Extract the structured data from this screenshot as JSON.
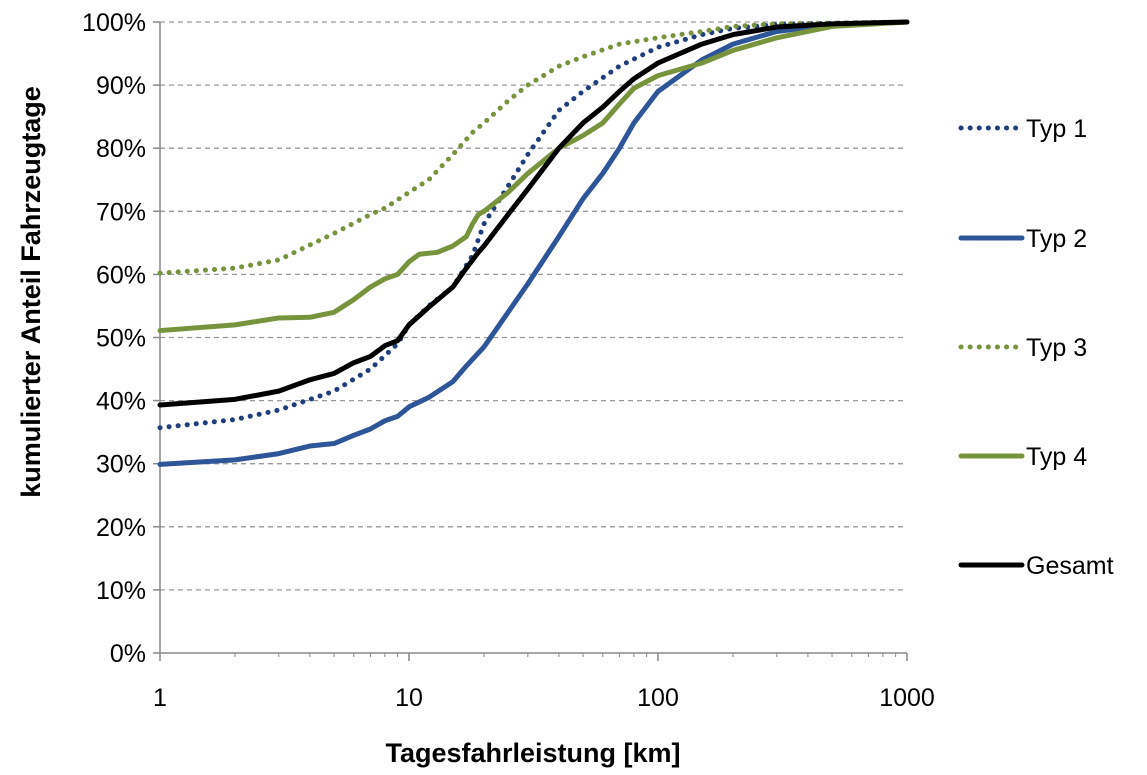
{
  "chart_data": {
    "type": "line",
    "title": "",
    "xlabel": "Tagesfahrleistung [km]",
    "ylabel": "kumulierter Anteil Fahrzeugtage",
    "xscale": "log",
    "xlim": [
      1,
      1000
    ],
    "ylim": [
      0,
      100
    ],
    "x_ticks": [
      1,
      10,
      100,
      1000
    ],
    "x_tick_labels": [
      "1",
      "10",
      "100",
      "1000"
    ],
    "y_ticks": [
      0,
      10,
      20,
      30,
      40,
      50,
      60,
      70,
      80,
      90,
      100
    ],
    "y_tick_labels": [
      "0%",
      "10%",
      "20%",
      "30%",
      "40%",
      "50%",
      "60%",
      "70%",
      "80%",
      "90%",
      "100%"
    ],
    "grid": "horizontal dashed",
    "legend_position": "right",
    "series": [
      {
        "name": "Typ 1",
        "color": "#1f3f7a",
        "style": "dotted",
        "points": [
          [
            1,
            35.7
          ],
          [
            2,
            37
          ],
          [
            3,
            38.5
          ],
          [
            5,
            41.5
          ],
          [
            7,
            45
          ],
          [
            9,
            49
          ],
          [
            10,
            52
          ],
          [
            12,
            55
          ],
          [
            15,
            58
          ],
          [
            18,
            63
          ],
          [
            20,
            68
          ],
          [
            25,
            74
          ],
          [
            30,
            79
          ],
          [
            40,
            86
          ],
          [
            50,
            89
          ],
          [
            70,
            93
          ],
          [
            100,
            96
          ],
          [
            150,
            98
          ],
          [
            200,
            99
          ],
          [
            300,
            99.6
          ],
          [
            500,
            99.8
          ],
          [
            1000,
            100
          ]
        ]
      },
      {
        "name": "Typ 2",
        "color": "#2e5597",
        "style": "solid",
        "points": [
          [
            1,
            29.9
          ],
          [
            2,
            30.6
          ],
          [
            3,
            31.6
          ],
          [
            4,
            32.8
          ],
          [
            5,
            33.2
          ],
          [
            6,
            34.5
          ],
          [
            7,
            35.5
          ],
          [
            8,
            36.8
          ],
          [
            9,
            37.5
          ],
          [
            10,
            39
          ],
          [
            12,
            40.5
          ],
          [
            15,
            43
          ],
          [
            17,
            45.5
          ],
          [
            20,
            48.5
          ],
          [
            25,
            54
          ],
          [
            30,
            58.5
          ],
          [
            40,
            66
          ],
          [
            50,
            72
          ],
          [
            60,
            76
          ],
          [
            70,
            80
          ],
          [
            80,
            84
          ],
          [
            100,
            89
          ],
          [
            150,
            94
          ],
          [
            200,
            96.5
          ],
          [
            300,
            98.5
          ],
          [
            500,
            99.6
          ],
          [
            1000,
            100
          ]
        ]
      },
      {
        "name": "Typ 3",
        "color": "#77933c",
        "style": "dotted",
        "points": [
          [
            1,
            60.2
          ],
          [
            2,
            61
          ],
          [
            3,
            62.3
          ],
          [
            5,
            66.5
          ],
          [
            7,
            69.5
          ],
          [
            8,
            70.5
          ],
          [
            10,
            73
          ],
          [
            12,
            75
          ],
          [
            15,
            79
          ],
          [
            18,
            82.5
          ],
          [
            20,
            84
          ],
          [
            25,
            87.5
          ],
          [
            30,
            90
          ],
          [
            40,
            93
          ],
          [
            50,
            94.5
          ],
          [
            70,
            96.5
          ],
          [
            100,
            97.5
          ],
          [
            150,
            98.5
          ],
          [
            200,
            99.3
          ],
          [
            300,
            99.7
          ],
          [
            1000,
            100
          ]
        ]
      },
      {
        "name": "Typ 4",
        "color": "#77933c",
        "style": "solid",
        "points": [
          [
            1,
            51.1
          ],
          [
            2,
            52
          ],
          [
            3,
            53.1
          ],
          [
            4,
            53.2
          ],
          [
            5,
            54
          ],
          [
            6,
            56
          ],
          [
            7,
            58
          ],
          [
            8,
            59.3
          ],
          [
            9,
            60
          ],
          [
            10,
            62
          ],
          [
            11,
            63.2
          ],
          [
            13,
            63.5
          ],
          [
            15,
            64.5
          ],
          [
            17,
            66
          ],
          [
            18,
            68
          ],
          [
            19,
            69.5
          ],
          [
            20,
            70
          ],
          [
            25,
            73
          ],
          [
            30,
            76
          ],
          [
            40,
            80
          ],
          [
            50,
            82
          ],
          [
            60,
            84
          ],
          [
            70,
            87
          ],
          [
            80,
            89.5
          ],
          [
            100,
            91.5
          ],
          [
            150,
            93.5
          ],
          [
            200,
            95.5
          ],
          [
            300,
            97.5
          ],
          [
            500,
            99.3
          ],
          [
            1000,
            100
          ]
        ]
      },
      {
        "name": "Gesamt",
        "color": "#000000",
        "style": "solid",
        "points": [
          [
            1,
            39.3
          ],
          [
            2,
            40.2
          ],
          [
            3,
            41.5
          ],
          [
            4,
            43.3
          ],
          [
            5,
            44.3
          ],
          [
            6,
            46
          ],
          [
            7,
            47
          ],
          [
            8,
            48.7
          ],
          [
            9,
            49.5
          ],
          [
            10,
            52
          ],
          [
            12,
            54.8
          ],
          [
            15,
            58
          ],
          [
            17,
            61
          ],
          [
            19,
            63.5
          ],
          [
            20,
            64.5
          ],
          [
            25,
            69.5
          ],
          [
            30,
            73.5
          ],
          [
            40,
            80
          ],
          [
            50,
            84
          ],
          [
            60,
            86.5
          ],
          [
            70,
            89
          ],
          [
            80,
            91
          ],
          [
            100,
            93.5
          ],
          [
            150,
            96.5
          ],
          [
            200,
            98
          ],
          [
            300,
            99.2
          ],
          [
            500,
            99.7
          ],
          [
            1000,
            100
          ]
        ]
      }
    ]
  }
}
